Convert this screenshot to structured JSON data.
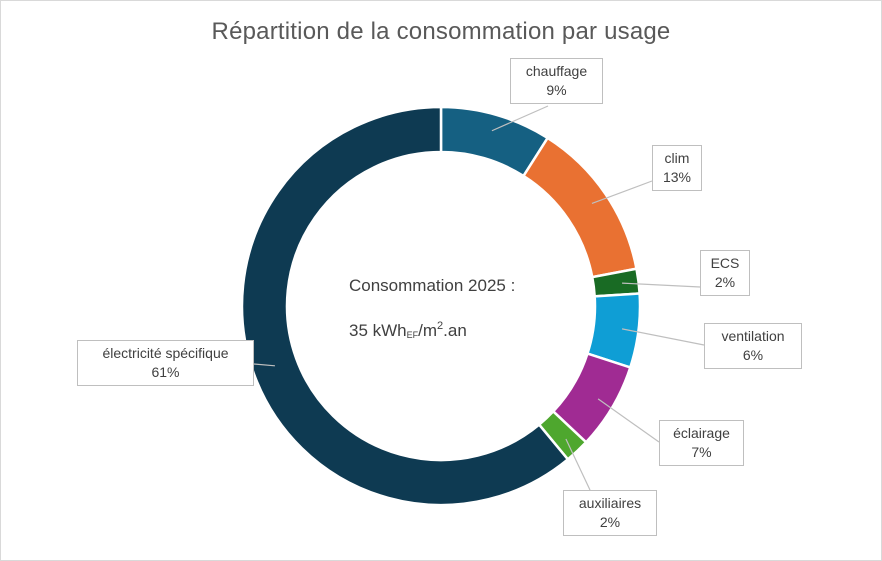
{
  "chart_data": {
    "type": "pie",
    "variant": "doughnut",
    "title": "Répartition de la consommation par usage",
    "center_text": {
      "line1": "Consommation 2025 :",
      "line2_main": "35 kWh",
      "line2_sub": "EF",
      "line2_mid": "/m",
      "line2_sup": "2",
      "line2_end": ".an"
    },
    "slices": [
      {
        "name": "chauffage",
        "value": 9,
        "label": "9%",
        "color": "#156082"
      },
      {
        "name": "clim",
        "value": 13,
        "label": "13%",
        "color": "#E97132"
      },
      {
        "name": "ECS",
        "value": 2,
        "label": "2%",
        "color": "#196B24"
      },
      {
        "name": "ventilation",
        "value": 6,
        "label": "6%",
        "color": "#0F9ED5"
      },
      {
        "name": "éclairage",
        "value": 7,
        "label": "7%",
        "color": "#A02B93"
      },
      {
        "name": "auxiliaires",
        "value": 2,
        "label": "2%",
        "color": "#4EA72E"
      },
      {
        "name": "électricité spécifique",
        "value": 61,
        "label": "61%",
        "color": "#0E3A52"
      }
    ],
    "legend": false
  }
}
